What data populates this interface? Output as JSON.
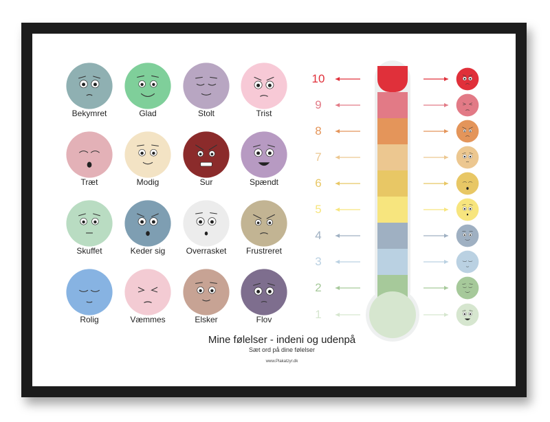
{
  "poster": {
    "title": "Mine følelser - indeni og udenpå",
    "subtitle": "Sæt ord på dine følelser",
    "website": "www.Plakatzyr.dk"
  },
  "emotions": [
    {
      "label": "Bekymret",
      "color": "#8fb0b2",
      "mood": "worried"
    },
    {
      "label": "Glad",
      "color": "#7fcf9a",
      "mood": "happy"
    },
    {
      "label": "Stolt",
      "color": "#b8a6c2",
      "mood": "proud"
    },
    {
      "label": "Trist",
      "color": "#f7c9d6",
      "mood": "sad"
    },
    {
      "label": "Træt",
      "color": "#e3b1b7",
      "mood": "tired"
    },
    {
      "label": "Modig",
      "color": "#f3e3c4",
      "mood": "brave"
    },
    {
      "label": "Sur",
      "color": "#8b2b2b",
      "mood": "angry"
    },
    {
      "label": "Spændt",
      "color": "#b79ac2",
      "mood": "excited"
    },
    {
      "label": "Skuffet",
      "color": "#b9dcc2",
      "mood": "disappointed"
    },
    {
      "label": "Keder sig",
      "color": "#7e9eb2",
      "mood": "bored"
    },
    {
      "label": "Overrasket",
      "color": "#ececec",
      "mood": "surprised"
    },
    {
      "label": "Frustreret",
      "color": "#c2b493",
      "mood": "frustrated"
    },
    {
      "label": "Rolig",
      "color": "#87b3e2",
      "mood": "calm"
    },
    {
      "label": "Væmmes",
      "color": "#f3cbd3",
      "mood": "disgusted"
    },
    {
      "label": "Elsker",
      "color": "#c7a394",
      "mood": "love"
    },
    {
      "label": "Flov",
      "color": "#7e6e8e",
      "mood": "embarrassed"
    }
  ],
  "thermometer": {
    "levels": [
      {
        "number": "10",
        "color": "#e0303a",
        "face_color": "#e0303a"
      },
      {
        "number": "9",
        "color": "#e27a86",
        "face_color": "#e27a86"
      },
      {
        "number": "8",
        "color": "#e4955a",
        "face_color": "#e4955a"
      },
      {
        "number": "7",
        "color": "#ecc790",
        "face_color": "#ecc790"
      },
      {
        "number": "6",
        "color": "#e8c765",
        "face_color": "#e8c765"
      },
      {
        "number": "5",
        "color": "#f7e57e",
        "face_color": "#f7e57e"
      },
      {
        "number": "4",
        "color": "#9fb0c2",
        "face_color": "#9fb0c2"
      },
      {
        "number": "3",
        "color": "#bad1e2",
        "face_color": "#bad1e2"
      },
      {
        "number": "2",
        "color": "#a6c99a",
        "face_color": "#a6c99a"
      },
      {
        "number": "1",
        "color": "#d6e6cf",
        "face_color": "#d6e6cf"
      }
    ],
    "icons": {
      "left_arrows": "arrow-left-icon",
      "right_arrows": "arrow-right-icon"
    }
  }
}
